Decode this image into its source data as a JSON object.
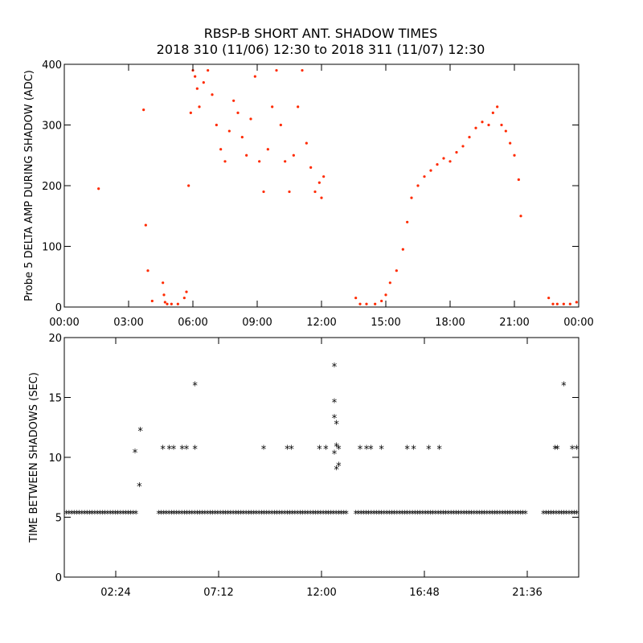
{
  "figure": {
    "title_line1": "RBSP-B SHORT ANT. SHADOW TIMES",
    "title_line2": "2018 310 (11/06) 12:30 to 2018 311 (11/07) 12:30"
  },
  "chart_data": [
    {
      "type": "scatter",
      "ylabel": "Probe 5 DELTA AMP DURING SHADOW (ADC)",
      "xlabel": "",
      "x_unit": "hours",
      "xlim": [
        0,
        24
      ],
      "ylim": [
        0,
        400
      ],
      "x_tick_values": [
        0,
        3,
        6,
        9,
        12,
        15,
        18,
        21,
        24
      ],
      "x_tick_labels": [
        "00:00",
        "03:00",
        "06:00",
        "09:00",
        "12:00",
        "15:00",
        "18:00",
        "21:00",
        "00:00"
      ],
      "y_tick_values": [
        0,
        100,
        200,
        300,
        400
      ],
      "y_tick_labels": [
        "0",
        "100",
        "200",
        "300",
        "400"
      ],
      "marker": "dot",
      "color": "#ff2a00",
      "grid": false,
      "series": [
        {
          "x": [
            1.6,
            3.7,
            3.8,
            3.9,
            4.1,
            4.6,
            4.65,
            4.7,
            4.8,
            5.0,
            5.3,
            5.6,
            5.7,
            5.8,
            5.9,
            6.0,
            6.1,
            6.2,
            6.3,
            6.5,
            6.7,
            6.9,
            7.1,
            7.3,
            7.5,
            7.7,
            7.9,
            8.1,
            8.3,
            8.5,
            8.7,
            8.9,
            9.1,
            9.3,
            9.5,
            9.7,
            9.9,
            10.1,
            10.3,
            10.5,
            10.7,
            10.9,
            11.1,
            11.3,
            11.5,
            11.7,
            11.9,
            12.0,
            12.1,
            13.6,
            13.8,
            14.1,
            14.5,
            14.8,
            15.0,
            15.2,
            15.5,
            15.8,
            16.0,
            16.2,
            16.5,
            16.8,
            17.1,
            17.4,
            17.7,
            18.0,
            18.3,
            18.6,
            18.9,
            19.2,
            19.5,
            19.8,
            20.0,
            20.2,
            20.4,
            20.6,
            20.8,
            21.0,
            21.2,
            21.3,
            22.6,
            22.8,
            23.0,
            23.3,
            23.6,
            23.9
          ],
          "y": [
            195,
            325,
            135,
            60,
            10,
            40,
            20,
            8,
            5,
            5,
            5,
            15,
            25,
            200,
            320,
            390,
            380,
            360,
            330,
            370,
            390,
            350,
            300,
            260,
            240,
            290,
            340,
            320,
            280,
            250,
            310,
            380,
            240,
            190,
            260,
            330,
            390,
            300,
            240,
            190,
            250,
            330,
            390,
            270,
            230,
            190,
            205,
            180,
            215,
            15,
            5,
            5,
            5,
            10,
            20,
            40,
            60,
            95,
            140,
            180,
            200,
            215,
            225,
            235,
            245,
            240,
            255,
            265,
            280,
            295,
            305,
            300,
            320,
            330,
            300,
            290,
            270,
            250,
            210,
            150,
            15,
            5,
            5,
            5,
            5,
            8
          ]
        }
      ]
    },
    {
      "type": "scatter",
      "ylabel": "TIME BETWEEN SHADOWS (SEC)",
      "xlabel": "",
      "x_unit": "hours",
      "xlim": [
        0,
        24
      ],
      "ylim": [
        0,
        20
      ],
      "x_tick_values": [
        2.4,
        7.2,
        12.0,
        16.8,
        21.6
      ],
      "x_tick_labels": [
        "02:24",
        "07:12",
        "12:00",
        "16:48",
        "21:36"
      ],
      "y_tick_values": [
        0,
        5,
        10,
        15,
        20
      ],
      "y_tick_labels": [
        "0",
        "5",
        "10",
        "15",
        "20"
      ],
      "marker": "asterisk",
      "color": "#000000",
      "grid": false,
      "baseline": {
        "y": 5.35,
        "segments": [
          [
            0.1,
            3.35
          ],
          [
            4.4,
            13.25
          ],
          [
            13.6,
            21.55
          ],
          [
            22.35,
            24
          ]
        ]
      },
      "series": [
        {
          "x": [
            3.3,
            3.55,
            3.5,
            4.6,
            4.9,
            5.1,
            5.5,
            5.7,
            6.1,
            6.1,
            9.3,
            10.4,
            10.6,
            11.9,
            12.2,
            12.6,
            12.6,
            12.6,
            12.7,
            12.7,
            12.6,
            12.8,
            12.7,
            12.8,
            13.8,
            14.1,
            14.3,
            14.8,
            16.0,
            16.3,
            17.0,
            17.5,
            23.3,
            22.9,
            23.0,
            23.7,
            23.9
          ],
          "y": [
            10.4,
            12.2,
            7.6,
            10.7,
            10.7,
            10.7,
            10.7,
            10.7,
            16.0,
            10.7,
            10.7,
            10.7,
            10.7,
            10.7,
            10.7,
            17.6,
            14.6,
            13.3,
            12.8,
            10.9,
            10.3,
            10.7,
            9.0,
            9.3,
            10.7,
            10.7,
            10.7,
            10.7,
            10.7,
            10.7,
            10.7,
            10.7,
            16.0,
            10.7,
            10.7,
            10.7,
            10.7
          ]
        }
      ]
    }
  ]
}
